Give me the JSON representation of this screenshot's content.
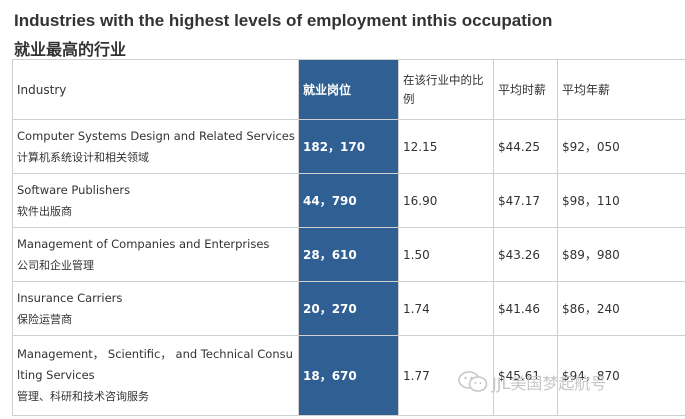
{
  "title_en": "Industries with the highest levels of employment inthis occupation",
  "title_zh": "就业最高的行业",
  "table": {
    "headers": {
      "industry": "Industry",
      "jobs": "就业岗位",
      "percent": "在该行业中的比例",
      "hourly": "平均时薪",
      "annual": "平均年薪"
    },
    "rows": [
      {
        "name_en": "Computer Systems Design and Related Services",
        "name_zh": "计算机系统设计和相关领域",
        "jobs": "182，170",
        "percent": "12.15",
        "hourly": "$44.25",
        "annual": "$92，050"
      },
      {
        "name_en": "Software Publishers",
        "name_zh": "软件出版商",
        "jobs": "44，790",
        "percent": "16.90",
        "hourly": "$47.17",
        "annual": "$98，110"
      },
      {
        "name_en": "Management of Companies and Enterprises",
        "name_zh": "公司和企业管理",
        "jobs": "28，610",
        "percent": "1.50",
        "hourly": "$43.26",
        "annual": "$89，980"
      },
      {
        "name_en": "Insurance Carriers",
        "name_zh": "保险运营商",
        "jobs": "20，270",
        "percent": "1.74",
        "hourly": "$41.46",
        "annual": "$86，240"
      },
      {
        "name_en_1": "Management， Scientific， and Technical Consu",
        "name_en_2": "lting Services",
        "name_zh": "管理、科研和技术咨询服务",
        "jobs": "18，670",
        "percent": "1.77",
        "hourly": "$45.61",
        "annual": "$94，870"
      }
    ]
  },
  "watermark": {
    "text": "JJL美国梦起航号",
    "icon": "wechat-icon"
  }
}
